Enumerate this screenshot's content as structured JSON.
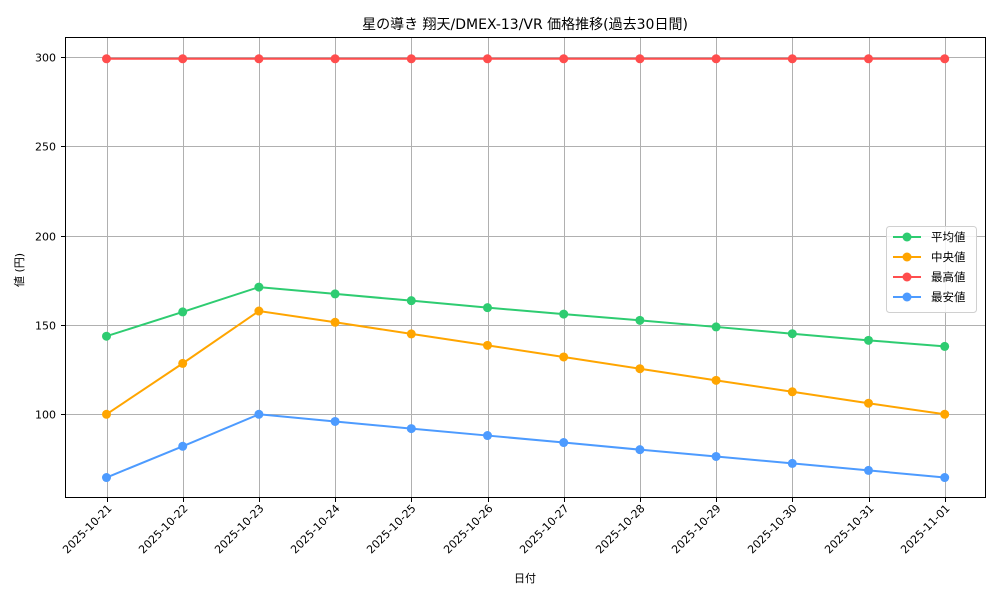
{
  "chart_data": {
    "type": "line",
    "title": "星の導き 翔天/DMEX-13/VR 価格推移(過去30日間)",
    "xlabel": "日付",
    "ylabel": "値 (円)",
    "categories": [
      "2025-10-21",
      "2025-10-22",
      "2025-10-23",
      "2025-10-24",
      "2025-10-25",
      "2025-10-26",
      "2025-10-27",
      "2025-10-28",
      "2025-10-29",
      "2025-10-30",
      "2025-10-31",
      "2025-11-01"
    ],
    "series": [
      {
        "name": "平均値",
        "color": "#2ecc71",
        "values": [
          143.7,
          157.3,
          171.2,
          167.4,
          163.6,
          159.7,
          156.1,
          152.6,
          148.9,
          145.1,
          141.4,
          138.0
        ]
      },
      {
        "name": "中央値",
        "color": "#ffa500",
        "values": [
          100.0,
          128.5,
          157.8,
          151.5,
          145.0,
          138.6,
          132.1,
          125.5,
          119.0,
          112.6,
          106.2,
          100.0
        ]
      },
      {
        "name": "最高値",
        "color": "#ff4d4d",
        "values": [
          299,
          299,
          299,
          299,
          299,
          299,
          299,
          299,
          299,
          299,
          299,
          299
        ]
      },
      {
        "name": "最安値",
        "color": "#4d9bff",
        "values": [
          64.6,
          82.1,
          100.0,
          96.0,
          92.0,
          88.1,
          84.2,
          80.2,
          76.4,
          72.5,
          68.6,
          64.6
        ]
      }
    ],
    "yticks": [
      100,
      150,
      200,
      250,
      300
    ],
    "ylim": [
      53.6,
      310
    ],
    "grid": true,
    "legend_position": "center right"
  }
}
